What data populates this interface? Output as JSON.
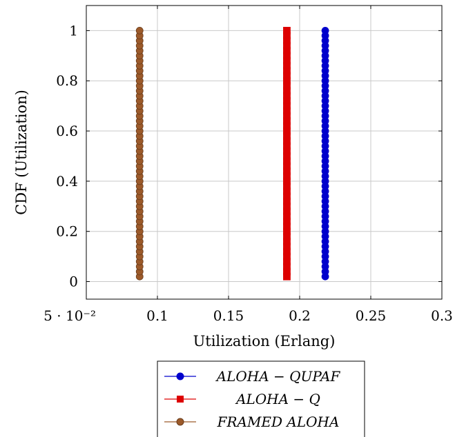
{
  "chart_data": {
    "type": "line",
    "xlabel": "Utilization (Erlang)",
    "ylabel": "CDF (Utilization)",
    "xlim": [
      0.05,
      0.3
    ],
    "ylim": [
      -0.07,
      1.1
    ],
    "x_ticks": [
      0.05,
      0.1,
      0.15,
      0.2,
      0.25,
      0.3
    ],
    "x_tick_labels": [
      "5 · 10⁻²",
      "0.1",
      "0.15",
      "0.2",
      "0.25",
      "0.3"
    ],
    "y_ticks": [
      0,
      0.2,
      0.4,
      0.6,
      0.8,
      1
    ],
    "y_tick_labels": [
      "0",
      "0.2",
      "0.4",
      "0.6",
      "0.8",
      "1"
    ],
    "grid": true,
    "legend_position": "below",
    "series": [
      {
        "name": "ALOHA − QUPAF",
        "x_value": 0.218,
        "y_start": 0.02,
        "y_end": 1.0,
        "color": "#0000cc",
        "marker": "circle"
      },
      {
        "name": "ALOHA − Q",
        "x_value": 0.191,
        "y_start": 0.02,
        "y_end": 1.0,
        "color": "#dd0000",
        "marker": "square"
      },
      {
        "name": "FRAMED ALOHA",
        "x_value": 0.0875,
        "y_start": 0.02,
        "y_end": 1.0,
        "color": "#9c5a2a",
        "marker": "circle"
      }
    ]
  }
}
